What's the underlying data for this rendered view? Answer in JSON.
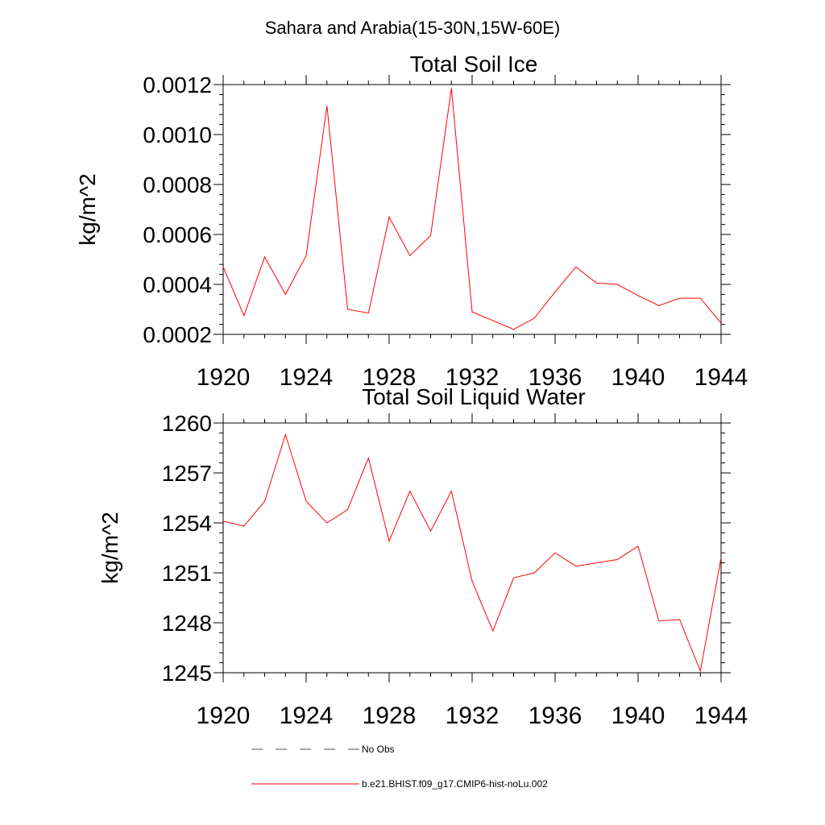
{
  "suptitle": "Sahara and Arabia(15-30N,15W-60E)",
  "chart_data": [
    {
      "type": "line",
      "title": "Total Soil Ice",
      "xlabel": "",
      "ylabel": "kg/m^2",
      "xlim": [
        1920,
        1944
      ],
      "ylim": [
        0.0002,
        0.0012
      ],
      "xticks": [
        1920,
        1924,
        1928,
        1932,
        1936,
        1940,
        1944
      ],
      "xtick_labels": [
        "1920",
        "1924",
        "1928",
        "1932",
        "1936",
        "1940",
        "1944"
      ],
      "yticks": [
        0.0002,
        0.0004,
        0.0006,
        0.0008,
        0.001,
        0.0012
      ],
      "ytick_labels": [
        "0.0002",
        "0.0004",
        "0.0006",
        "0.0008",
        "0.0010",
        "0.0012"
      ],
      "grid": false,
      "x": [
        1920,
        1921,
        1922,
        1923,
        1924,
        1925,
        1926,
        1927,
        1928,
        1929,
        1930,
        1931,
        1932,
        1933,
        1934,
        1935,
        1936,
        1937,
        1938,
        1939,
        1940,
        1941,
        1942,
        1943,
        1944
      ],
      "series": [
        {
          "color": "#ff0000",
          "values": [
            0.00047,
            0.000275,
            0.00051,
            0.00036,
            0.000515,
            0.001115,
            0.0003,
            0.000285,
            0.00067,
            0.000515,
            0.000595,
            0.001185,
            0.00029,
            0.000255,
            0.00022,
            0.000265,
            0.00037,
            0.00047,
            0.000405,
            0.0004,
            0.000355,
            0.000315,
            0.000345,
            0.000345,
            0.000245
          ]
        }
      ]
    },
    {
      "type": "line",
      "title": "Total Soil Liquid Water",
      "xlabel": "",
      "ylabel": "kg/m^2",
      "xlim": [
        1920,
        1944
      ],
      "ylim": [
        1245,
        1260
      ],
      "xticks": [
        1920,
        1924,
        1928,
        1932,
        1936,
        1940,
        1944
      ],
      "xtick_labels": [
        "1920",
        "1924",
        "1928",
        "1932",
        "1936",
        "1940",
        "1944"
      ],
      "yticks": [
        1245,
        1248,
        1251,
        1254,
        1257,
        1260
      ],
      "ytick_labels": [
        "1245",
        "1248",
        "1251",
        "1254",
        "1257",
        "1260"
      ],
      "grid": false,
      "x": [
        1920,
        1921,
        1922,
        1923,
        1924,
        1925,
        1926,
        1927,
        1928,
        1929,
        1930,
        1931,
        1932,
        1933,
        1934,
        1935,
        1936,
        1937,
        1938,
        1939,
        1940,
        1941,
        1942,
        1943,
        1944
      ],
      "series": [
        {
          "color": "#ff0000",
          "values": [
            1254.1,
            1253.8,
            1255.3,
            1259.3,
            1255.3,
            1254.0,
            1254.8,
            1257.9,
            1252.9,
            1255.9,
            1253.5,
            1255.9,
            1250.5,
            1247.5,
            1250.7,
            1251.0,
            1252.2,
            1251.4,
            1251.6,
            1251.8,
            1252.6,
            1248.1,
            1248.2,
            1245.1,
            1251.9
          ]
        }
      ]
    }
  ],
  "legend": {
    "placement": "bottom",
    "items": [
      {
        "label": "No Obs",
        "color": "#4d4d66",
        "style": "dashed"
      },
      {
        "label": "b.e21.BHIST.f09_g17.CMIP6-hist-noLu.002",
        "color": "#ff0000",
        "style": "solid"
      }
    ]
  }
}
